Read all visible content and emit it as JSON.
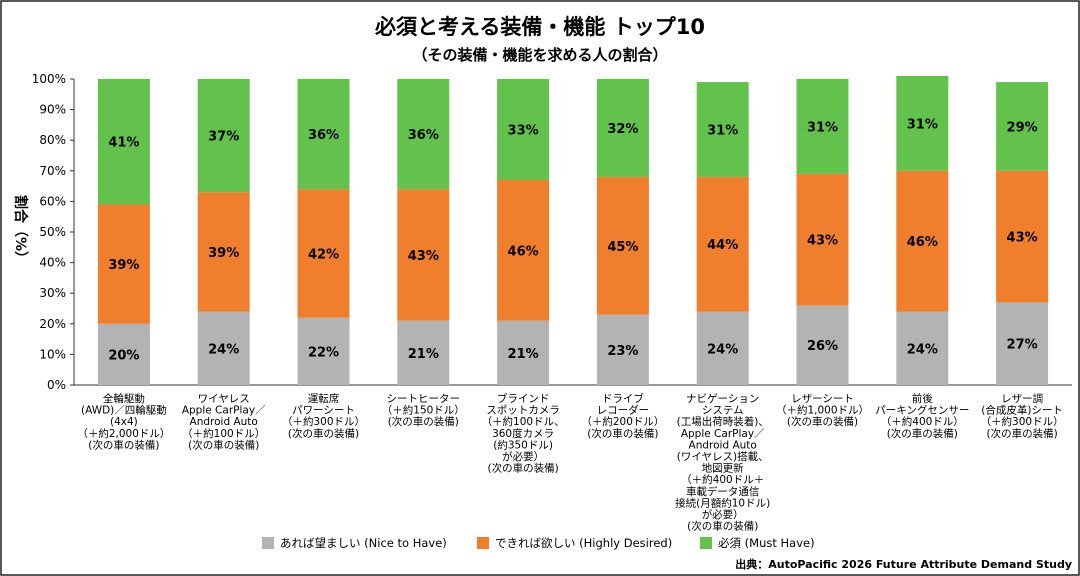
{
  "chart_data": {
    "type": "bar",
    "stacked": true,
    "title": "必須と考える装備・機能 トップ10",
    "subtitle": "（その装備・機能を求める人の割合）",
    "ylabel": "割合（%）",
    "ylim": [
      0,
      100
    ],
    "yticks": [
      "0%",
      "10%",
      "20%",
      "30%",
      "40%",
      "50%",
      "60%",
      "70%",
      "80%",
      "90%",
      "100%"
    ],
    "grid": false,
    "legend_position": "bottom",
    "categories": [
      [
        "全輪駆動",
        "(AWD)／四輪駆動",
        "(4x4)",
        "（＋約2,000ドル）",
        "(次の車の装備)"
      ],
      [
        "ワイヤレス",
        "Apple CarPlay／",
        "Android Auto",
        "（＋約100ドル）",
        "(次の車の装備)"
      ],
      [
        "運転席",
        "パワーシート",
        "（＋約300ドル）",
        "(次の車の装備)"
      ],
      [
        "シートヒーター",
        "（＋約150ドル）",
        "(次の車の装備)"
      ],
      [
        "ブラインド",
        "スポットカメラ",
        "（＋約100ドル、",
        "360度カメラ",
        "(約350ドル)",
        "が必要）",
        "(次の車の装備)"
      ],
      [
        "ドライブ",
        "レコーダー",
        "（＋約200ドル）",
        "(次の車の装備)"
      ],
      [
        "ナビゲーション",
        "システム",
        "(工場出荷時装着)、",
        "Apple CarPlay／",
        "Android Auto",
        "(ワイヤレス)搭載、",
        "地図更新",
        "（＋約400ドル＋",
        "車載データ通信",
        "接続(月額約10ドル)",
        "が必要）",
        "(次の車の装備)"
      ],
      [
        "レザーシート",
        "（＋約1,000ドル）",
        "(次の車の装備)"
      ],
      [
        "前後",
        "パーキングセンサー",
        "（＋約400ドル）",
        "(次の車の装備)"
      ],
      [
        "レザー調",
        "(合成皮革)シート",
        "（＋約300ドル）",
        "(次の車の装備)"
      ]
    ],
    "series": [
      {
        "name": "あれば望ましい (Nice to Have)",
        "color": "#b3b3b3",
        "values": [
          20,
          24,
          22,
          21,
          21,
          23,
          24,
          26,
          24,
          27
        ]
      },
      {
        "name": "できれば欲しい (Highly Desired)",
        "color": "#ef7f2c",
        "values": [
          39,
          39,
          42,
          43,
          46,
          45,
          44,
          43,
          46,
          43
        ]
      },
      {
        "name": "必須  (Must Have)",
        "color": "#62c24c",
        "values": [
          41,
          37,
          36,
          36,
          33,
          32,
          31,
          31,
          31,
          29
        ]
      }
    ],
    "value_suffix": "%",
    "source": "出典：AutoPacific 2026 Future Attribute Demand Study"
  }
}
